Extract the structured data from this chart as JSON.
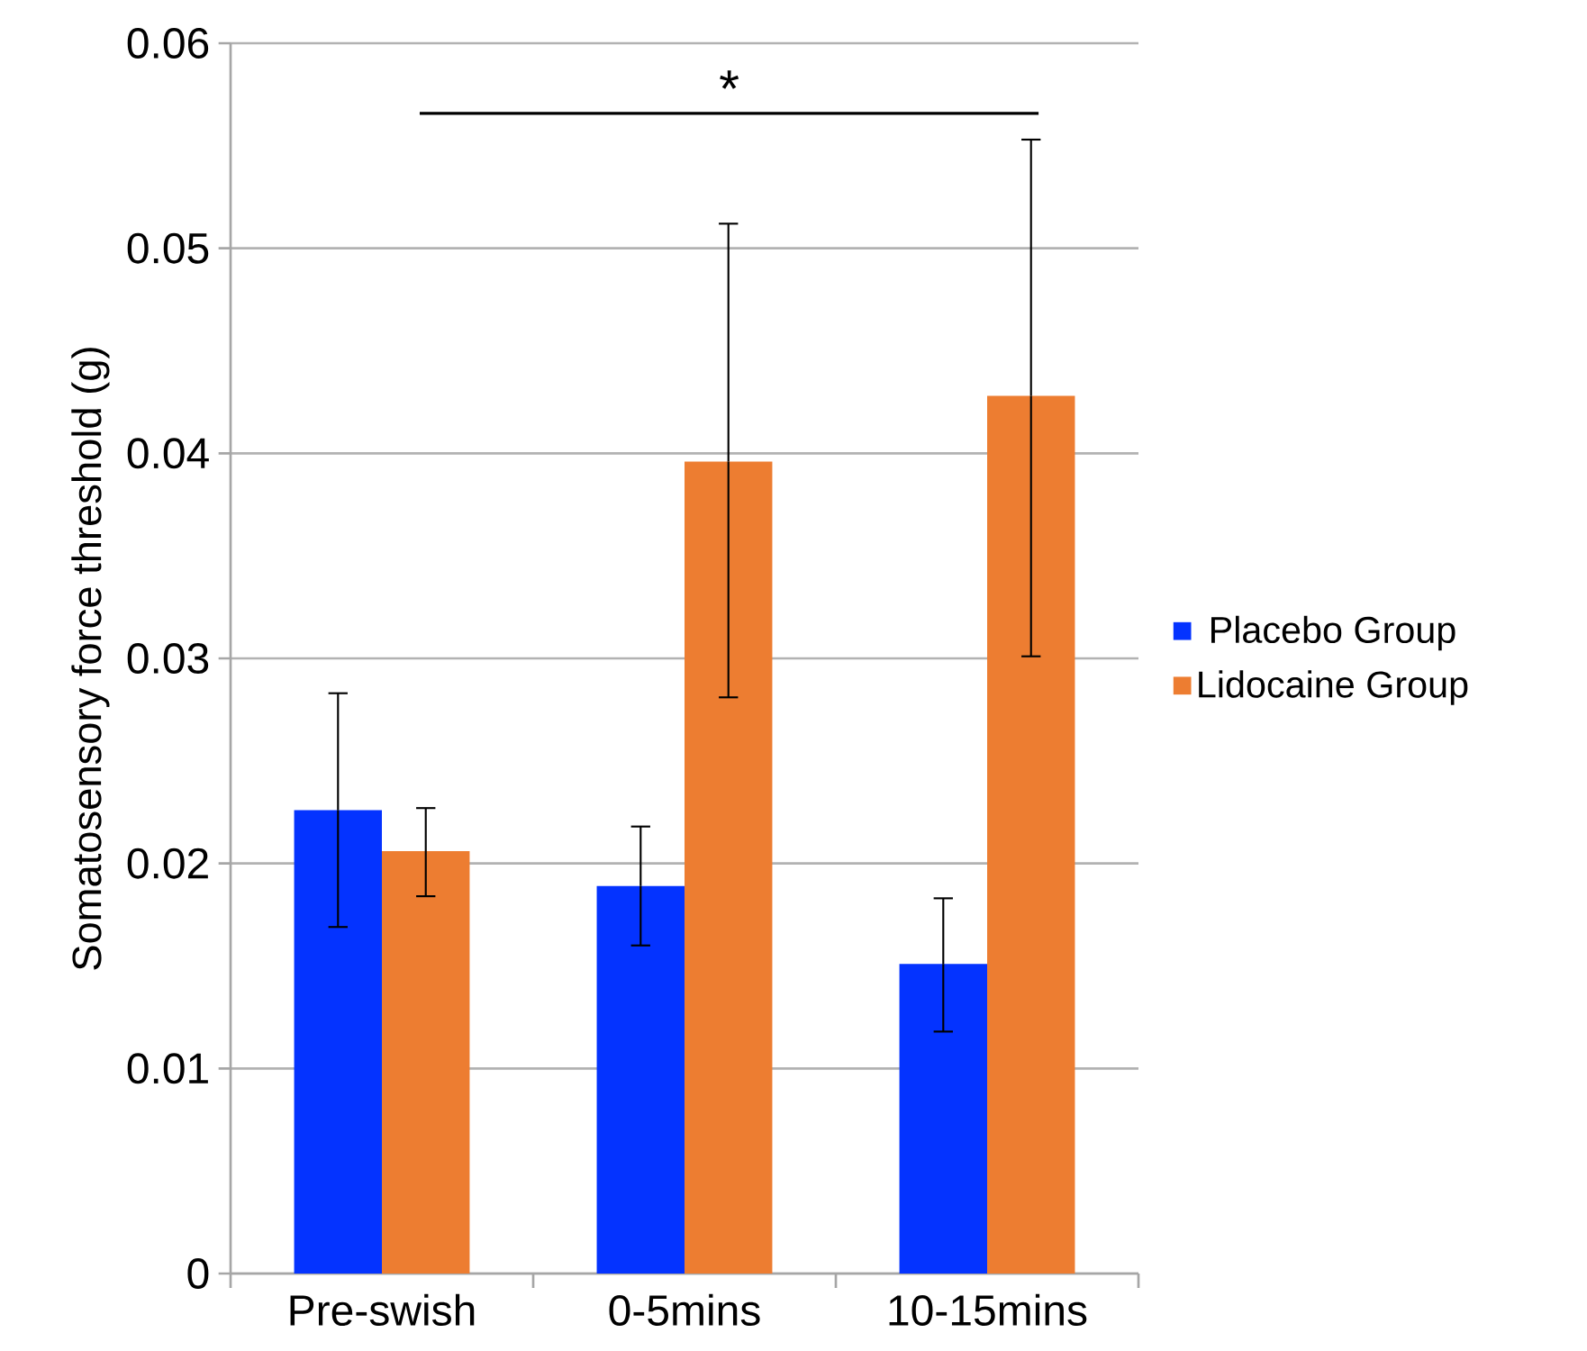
{
  "chart_data": {
    "type": "bar",
    "ylabel": "Somatosensory force threshold (g)",
    "categories": [
      "Pre-swish",
      "0-5mins",
      "10-15mins"
    ],
    "series": [
      {
        "name": "Placebo Group",
        "color": "#0433ff",
        "values": [
          0.0226,
          0.0189,
          0.0151
        ],
        "errors": [
          [
            0.0169,
            0.0283
          ],
          [
            0.016,
            0.0218
          ],
          [
            0.0118,
            0.0183
          ]
        ]
      },
      {
        "name": "Lidocaine Group",
        "color": "#ed7d31",
        "values": [
          0.0206,
          0.0396,
          0.0428
        ],
        "errors": [
          [
            0.0184,
            0.0227
          ],
          [
            0.0281,
            0.0512
          ],
          [
            0.0301,
            0.0553
          ]
        ]
      }
    ],
    "ylim": [
      0,
      0.06
    ],
    "yticks": [
      0,
      0.01,
      0.02,
      0.03,
      0.04,
      0.05,
      0.06
    ],
    "annotations": [
      "*"
    ],
    "grid": "y",
    "legend": "right"
  }
}
